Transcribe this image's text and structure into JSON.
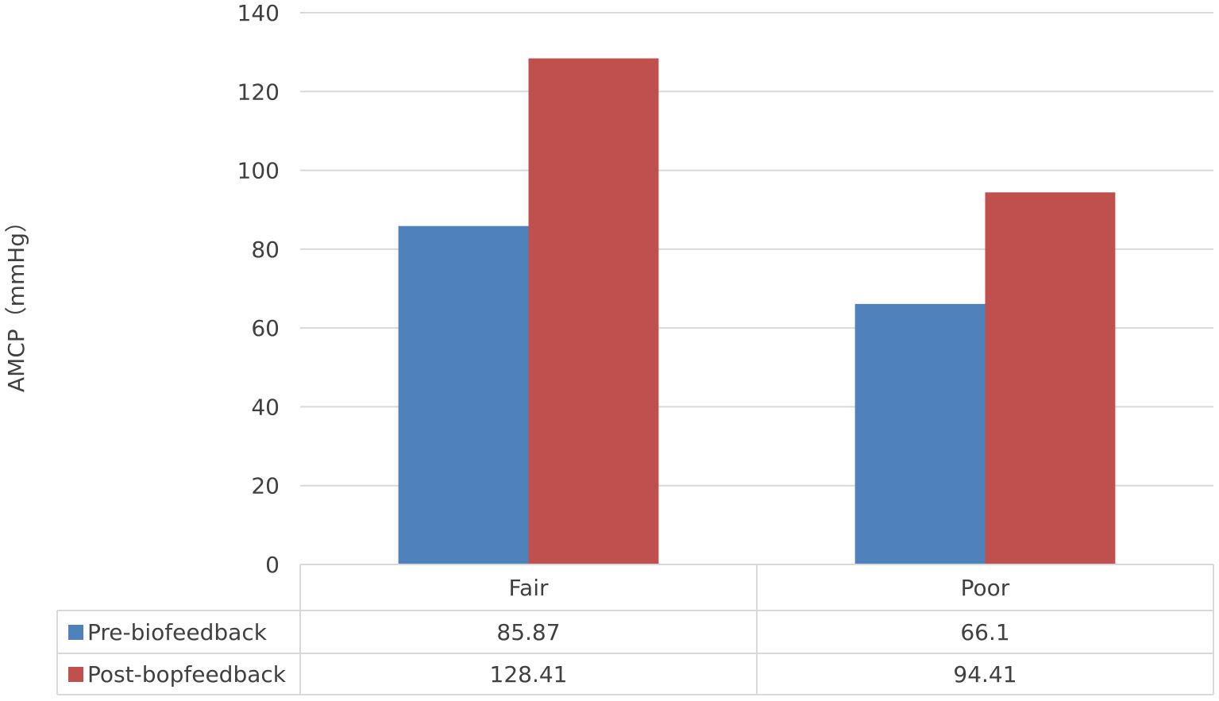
{
  "chart_data": {
    "type": "bar",
    "title": "",
    "xlabel": "",
    "ylabel": "AMCP（mmHg）",
    "categories": [
      "Fair",
      "Poor"
    ],
    "series": [
      {
        "name": "Pre-biofeedback",
        "values": [
          85.87,
          66.1
        ],
        "value_labels": [
          "85.87",
          "66.1"
        ],
        "color": "#4f81bd"
      },
      {
        "name": "Post-bopfeedback",
        "values": [
          128.41,
          94.41
        ],
        "value_labels": [
          "128.41",
          "94.41"
        ],
        "color": "#c0504d"
      }
    ],
    "ylim": [
      0,
      140
    ],
    "yticks": [
      0,
      20,
      40,
      60,
      80,
      100,
      120,
      140
    ],
    "grid": true,
    "legend": "data-table-below",
    "data_table": true
  }
}
